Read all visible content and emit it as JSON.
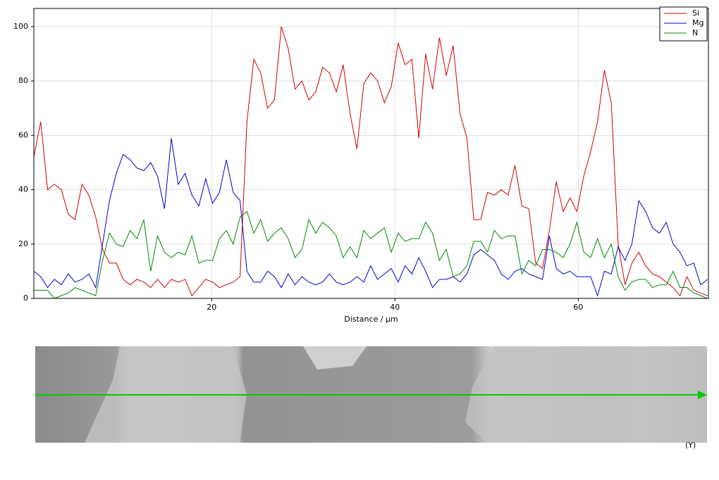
{
  "chart_data": {
    "type": "line",
    "xlabel": "Distance / µm",
    "x": [
      0.6,
      1.35,
      2.1,
      2.85,
      3.6,
      4.35,
      5.1,
      5.85,
      6.6,
      7.35,
      8.1,
      8.85,
      9.6,
      10.35,
      11.1,
      11.85,
      12.6,
      13.35,
      14.1,
      14.85,
      15.6,
      16.35,
      17.1,
      17.85,
      18.6,
      19.35,
      20.1,
      20.85,
      21.6,
      22.35,
      23.1,
      23.85,
      24.6,
      25.35,
      26.1,
      26.85,
      27.6,
      28.35,
      29.1,
      29.85,
      30.6,
      31.35,
      32.1,
      32.85,
      33.6,
      34.35,
      35.1,
      35.85,
      36.6,
      37.35,
      38.1,
      38.85,
      39.6,
      40.35,
      41.1,
      41.85,
      42.6,
      43.35,
      44.1,
      44.85,
      45.6,
      46.35,
      47.1,
      47.85,
      48.6,
      49.35,
      50.1,
      50.85,
      51.6,
      52.35,
      53.1,
      53.85,
      54.6,
      55.35,
      56.1,
      56.85,
      57.6,
      58.35,
      59.1,
      59.85,
      60.6,
      61.35,
      62.1,
      62.85,
      63.6,
      64.35,
      65.1,
      65.85,
      66.6,
      67.35,
      68.1,
      68.85,
      69.6,
      70.35,
      71.1,
      71.85,
      72.6,
      73.35,
      74.1
    ],
    "series": [
      {
        "name": "Si",
        "color": "#d00000",
        "values": [
          52,
          65,
          40,
          42,
          40,
          31,
          29,
          42,
          38,
          30,
          18,
          13,
          13,
          7,
          5,
          7,
          6,
          4,
          7,
          4,
          7,
          6,
          7,
          1,
          4,
          7,
          6,
          4,
          5,
          6,
          8,
          65,
          88,
          83,
          70,
          73,
          100,
          92,
          77,
          80,
          73,
          76,
          85,
          83,
          76,
          86,
          68,
          55,
          79,
          83,
          80,
          72,
          78,
          94,
          86,
          88,
          59,
          90,
          77,
          96,
          82,
          93,
          68,
          59,
          29,
          29,
          39,
          38,
          40,
          38,
          49,
          34,
          33,
          13,
          11,
          25,
          43,
          32,
          37,
          32,
          45,
          54,
          65,
          84,
          72,
          20,
          5,
          13,
          17,
          12,
          9,
          8,
          6,
          4,
          1,
          8,
          3,
          2,
          1
        ]
      },
      {
        "name": "Mg",
        "color": "#0000d0",
        "values": [
          10,
          8,
          4,
          7,
          5,
          9,
          6,
          7,
          9,
          4,
          20,
          36,
          46,
          53,
          51,
          48,
          47,
          50,
          45,
          33,
          59,
          42,
          46,
          38,
          34,
          44,
          35,
          39,
          51,
          39,
          36,
          10,
          6,
          6,
          10,
          8,
          4,
          9,
          5,
          8,
          6,
          5,
          6,
          9,
          6,
          5,
          6,
          8,
          6,
          12,
          7,
          9,
          11,
          6,
          12,
          9,
          15,
          10,
          4,
          7,
          7,
          8,
          6,
          9,
          16,
          18,
          16,
          14,
          9,
          7,
          10,
          11,
          9,
          8,
          7,
          23,
          11,
          9,
          10,
          8,
          8,
          8,
          1,
          10,
          9,
          19,
          14,
          20,
          36,
          32,
          26,
          24,
          28,
          20,
          17,
          12,
          13,
          5,
          7
        ]
      },
      {
        "name": "N",
        "color": "#008800",
        "values": [
          3,
          3,
          3,
          0,
          1,
          2,
          4,
          3,
          2,
          1,
          14,
          24,
          20,
          19,
          25,
          22,
          29,
          10,
          23,
          17,
          15,
          17,
          16,
          23,
          13,
          14,
          14,
          22,
          25,
          20,
          30,
          32,
          24,
          29,
          21,
          24,
          26,
          22,
          15,
          18,
          29,
          24,
          28,
          26,
          23,
          15,
          19,
          15,
          25,
          22,
          24,
          26,
          17,
          24,
          21,
          22,
          22,
          28,
          24,
          14,
          18,
          8,
          9,
          12,
          21,
          21,
          17,
          25,
          22,
          23,
          23,
          9,
          14,
          12,
          18,
          18,
          17,
          15,
          20,
          28,
          17,
          15,
          22,
          15,
          20,
          8,
          3,
          6,
          7,
          7,
          4,
          5,
          5,
          10,
          4,
          4,
          2,
          1,
          0
        ]
      }
    ],
    "xlim": [
      0.6,
      74.2
    ],
    "ylim": [
      0,
      106.7
    ],
    "xticks": [
      20,
      40,
      60
    ],
    "yticks": [
      0,
      20,
      40,
      60,
      80,
      100
    ],
    "grid": true,
    "legend": "top-right"
  },
  "image_caption": "(Y)"
}
